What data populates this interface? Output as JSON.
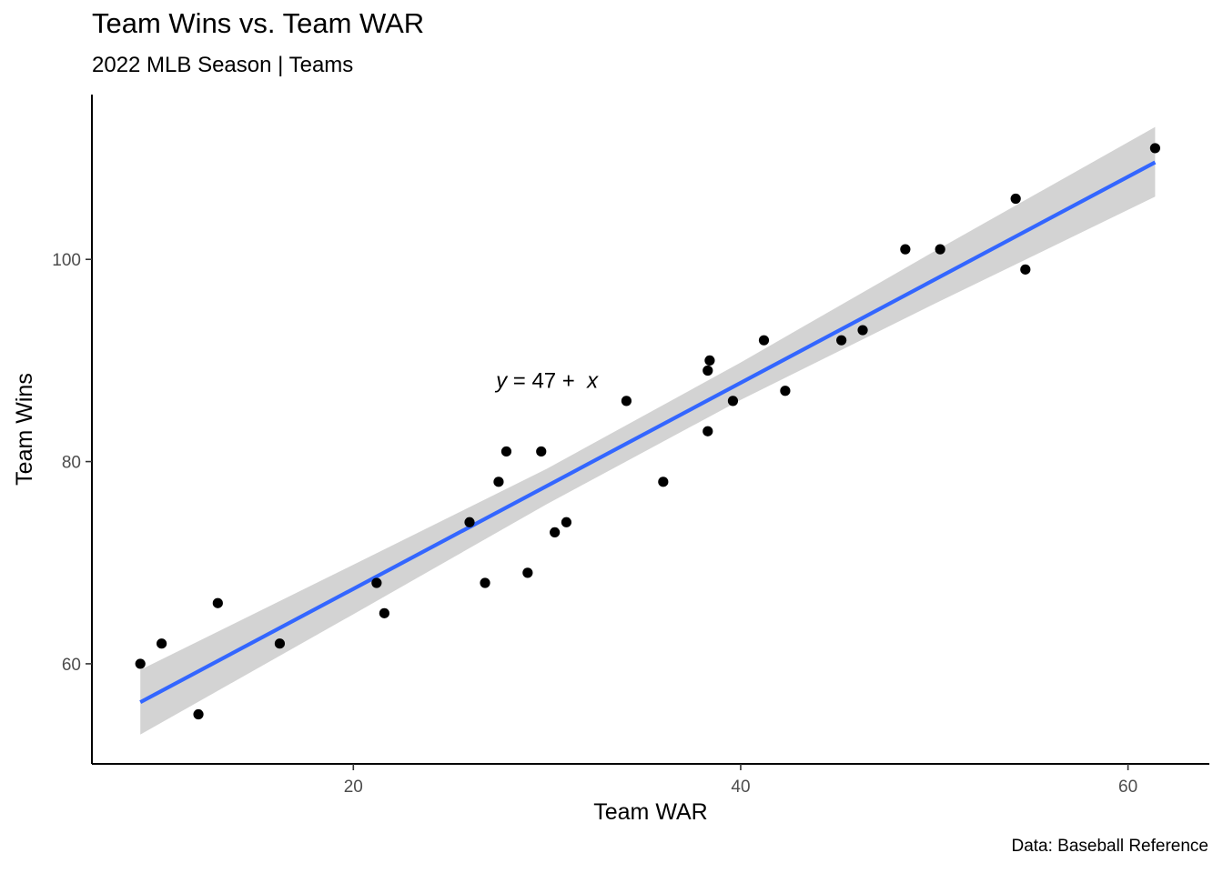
{
  "title": "Team Wins vs. Team WAR",
  "subtitle": "2022 MLB Season | Teams",
  "caption": "Data: Baseball Reference",
  "chart_data": {
    "type": "scatter",
    "xlabel": "Team WAR",
    "ylabel": "Team Wins",
    "xlim": [
      6.5,
      64.2
    ],
    "ylim": [
      50.1,
      116.3
    ],
    "x_ticks": [
      20,
      40,
      60
    ],
    "y_ticks": [
      60,
      80,
      100
    ],
    "grid": false,
    "points": [
      {
        "x": 9.0,
        "y": 60
      },
      {
        "x": 10.1,
        "y": 62
      },
      {
        "x": 12.0,
        "y": 55
      },
      {
        "x": 13.0,
        "y": 66
      },
      {
        "x": 16.2,
        "y": 62
      },
      {
        "x": 21.2,
        "y": 68
      },
      {
        "x": 21.6,
        "y": 65
      },
      {
        "x": 26.0,
        "y": 74
      },
      {
        "x": 26.8,
        "y": 68
      },
      {
        "x": 27.5,
        "y": 78
      },
      {
        "x": 27.9,
        "y": 81
      },
      {
        "x": 29.0,
        "y": 69
      },
      {
        "x": 29.7,
        "y": 81
      },
      {
        "x": 30.4,
        "y": 73
      },
      {
        "x": 31.0,
        "y": 74
      },
      {
        "x": 34.1,
        "y": 86
      },
      {
        "x": 36.0,
        "y": 78
      },
      {
        "x": 38.3,
        "y": 83
      },
      {
        "x": 38.3,
        "y": 89
      },
      {
        "x": 38.4,
        "y": 90
      },
      {
        "x": 39.6,
        "y": 86
      },
      {
        "x": 41.2,
        "y": 92
      },
      {
        "x": 42.3,
        "y": 87
      },
      {
        "x": 45.2,
        "y": 92
      },
      {
        "x": 46.3,
        "y": 93
      },
      {
        "x": 48.5,
        "y": 101
      },
      {
        "x": 50.3,
        "y": 101
      },
      {
        "x": 54.2,
        "y": 106
      },
      {
        "x": 54.7,
        "y": 99
      },
      {
        "x": 61.4,
        "y": 111
      }
    ],
    "fit_line": {
      "color": "#3366ff",
      "x_range": [
        9.0,
        61.4
      ],
      "y_range": [
        56.2,
        109.6
      ]
    },
    "confidence_band": {
      "color": "#d3d3d3",
      "lower": [
        [
          9.0,
          53.0
        ],
        [
          20.0,
          64.9
        ],
        [
          30.0,
          75.8
        ],
        [
          40.0,
          86.1
        ],
        [
          50.0,
          95.6
        ],
        [
          61.4,
          106.2
        ]
      ],
      "upper": [
        [
          9.0,
          59.4
        ],
        [
          20.0,
          69.8
        ],
        [
          30.0,
          79.3
        ],
        [
          40.0,
          89.8
        ],
        [
          50.0,
          100.8
        ],
        [
          61.4,
          113.1
        ]
      ]
    },
    "annotation": {
      "text_y": "y",
      "text_mid": " = 47 +  ",
      "text_x": "x",
      "at": [
        30.0,
        88.0
      ]
    }
  }
}
